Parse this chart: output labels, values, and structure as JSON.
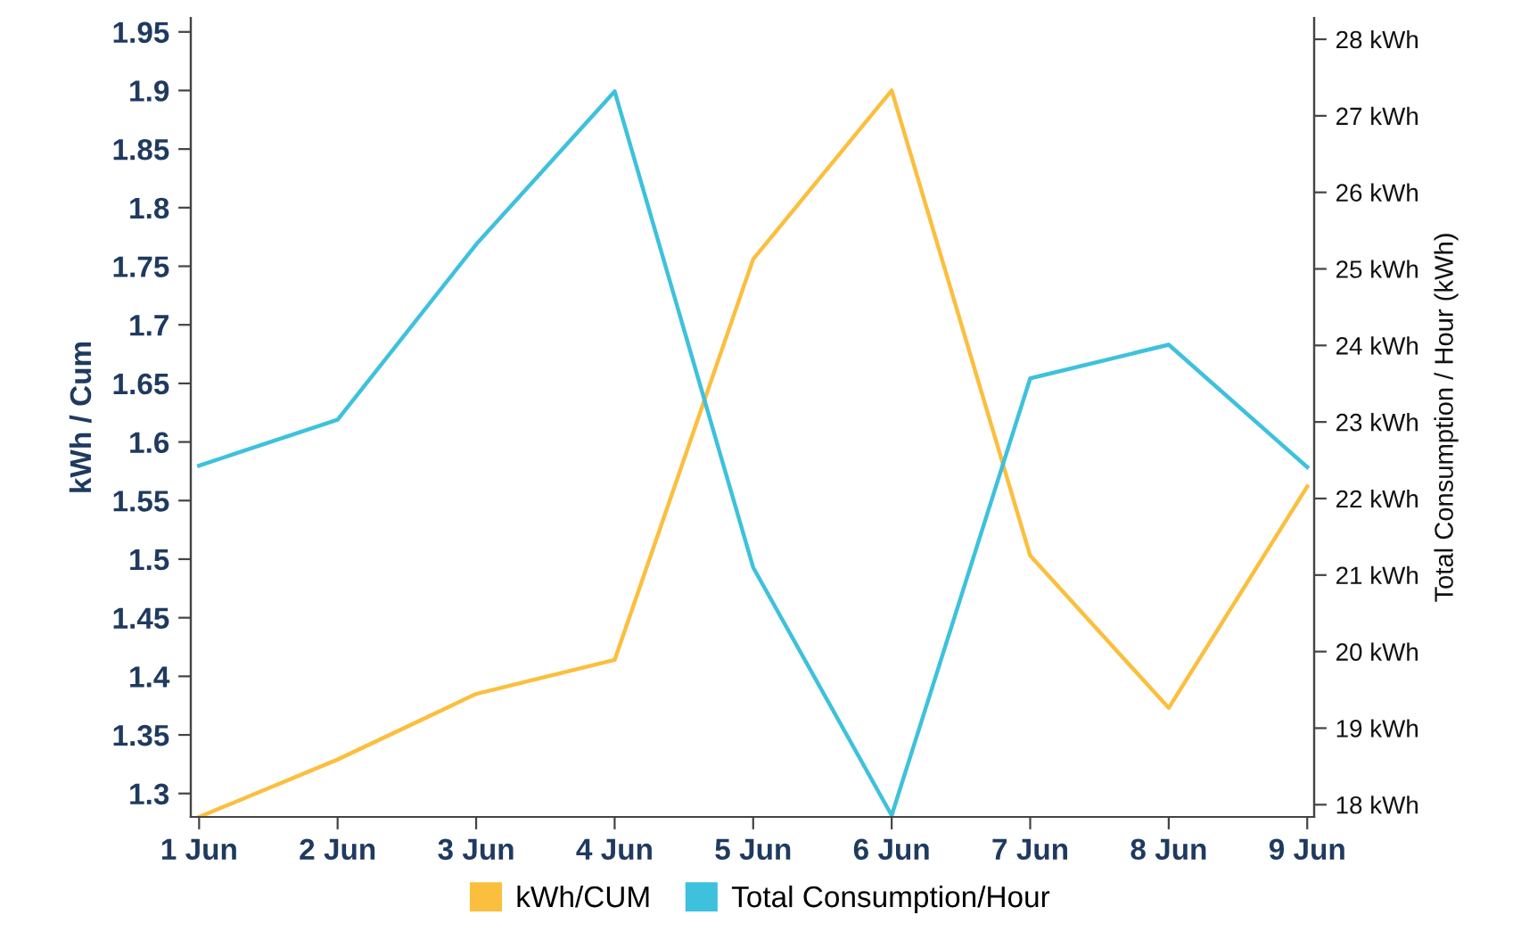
{
  "chart_data": {
    "type": "line",
    "categories": [
      "1 Jun",
      "2 Jun",
      "3 Jun",
      "4 Jun",
      "5 Jun",
      "6 Jun",
      "7 Jun",
      "8 Jun",
      "9 Jun"
    ],
    "series": [
      {
        "name": "kWh/CUM",
        "color": "#fbbf3f",
        "values": [
          1.28,
          1.329,
          1.385,
          1.414,
          1.756,
          1.9,
          1.503,
          1.373,
          1.562
        ]
      },
      {
        "name": "Total Consumption/Hour",
        "color": "#3ec1dc",
        "axis": "y2",
        "values": [
          22.43,
          23.03,
          25.32,
          27.32,
          21.1,
          17.86,
          23.57,
          24.01,
          22.41
        ]
      }
    ],
    "ylabel": "kWh / Cum",
    "y2label": "Total Consumption / Hour (kWh)",
    "ylim": [
      1.28,
      1.962
    ],
    "yticks": [
      1.3,
      1.35,
      1.4,
      1.45,
      1.5,
      1.55,
      1.6,
      1.65,
      1.7,
      1.75,
      1.8,
      1.85,
      1.9,
      1.95
    ],
    "y2lim": [
      17.84,
      28.28
    ],
    "y2ticks": [
      {
        "value": 18,
        "label": "18 kWh"
      },
      {
        "value": 19,
        "label": "19 kWh"
      },
      {
        "value": 20,
        "label": "20 kWh"
      },
      {
        "value": 21,
        "label": "21 kWh"
      },
      {
        "value": 22,
        "label": "22 kWh"
      },
      {
        "value": 23,
        "label": "23 kWh"
      },
      {
        "value": 24,
        "label": "24 kWh"
      },
      {
        "value": 25,
        "label": "25 kWh"
      },
      {
        "value": 26,
        "label": "26 kWh"
      },
      {
        "value": 27,
        "label": "27 kWh"
      },
      {
        "value": 28,
        "label": "28 kWh"
      }
    ],
    "legend": "bottom",
    "grid": false,
    "marker": "none",
    "line_style": "solid"
  }
}
